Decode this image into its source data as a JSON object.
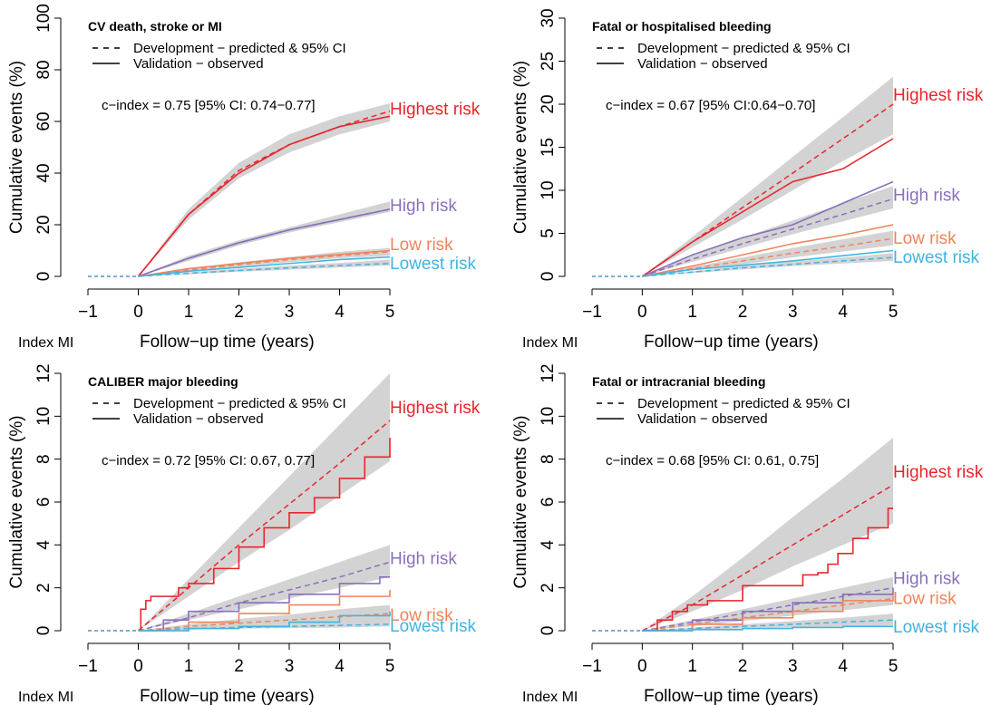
{
  "colors": {
    "highest": "#e8262c",
    "high": "#8a6fbd",
    "low": "#f0845c",
    "lowest": "#42b4e0",
    "ci_band": "#d3d3d3",
    "axis": "#000000"
  },
  "shared": {
    "ylabel": "Cumulative events (%)",
    "xlabel": "Follow−up time (years)",
    "index_label": "Index MI",
    "legend": {
      "dashed": "Development − predicted & 95% CI",
      "solid": "Validation − observed"
    },
    "xticks": [
      "−1",
      "0",
      "1",
      "2",
      "3",
      "4",
      "5"
    ]
  },
  "chart_data": [
    {
      "type": "line",
      "title": "CV death, stroke or MI",
      "annotation": "c−index = 0.75 [95% CI: 0.74−0.77]",
      "xlim": [
        -1,
        5
      ],
      "ylim": [
        0,
        100
      ],
      "yticks": [
        "0",
        "20",
        "40",
        "60",
        "80",
        "100"
      ],
      "series": [
        {
          "name": "Highest risk",
          "predicted": [
            0,
            24,
            41,
            51,
            58,
            64
          ],
          "ci_low": [
            0,
            22,
            38,
            48,
            55,
            60
          ],
          "ci_high": [
            0,
            26,
            44,
            55,
            62,
            67
          ],
          "observed": [
            0,
            24,
            40,
            51,
            58,
            62
          ]
        },
        {
          "name": "High risk",
          "predicted": [
            0,
            7,
            13,
            18,
            22,
            26
          ],
          "ci_low": [
            0,
            6,
            12,
            17,
            21,
            25
          ],
          "ci_high": [
            0,
            8,
            14,
            19,
            24,
            29
          ],
          "observed": [
            0,
            7,
            13,
            18,
            22,
            26
          ]
        },
        {
          "name": "Low risk",
          "predicted": [
            0,
            2.5,
            4.5,
            6.5,
            8,
            9.5
          ],
          "ci_low": [
            0,
            2,
            3.8,
            5.5,
            7,
            8
          ],
          "ci_high": [
            0,
            3,
            5.5,
            7.5,
            9.5,
            11
          ],
          "observed": [
            0,
            3,
            5,
            7,
            8.5,
            10
          ]
        },
        {
          "name": "Lowest risk",
          "predicted": [
            0,
            1.2,
            2.3,
            3.3,
            4.2,
            5
          ],
          "ci_low": [
            0,
            0.8,
            1.8,
            2.6,
            3.4,
            4.2
          ],
          "ci_high": [
            0,
            1.6,
            3,
            4.2,
            5.2,
            6.5
          ],
          "observed": [
            0,
            2,
            3.5,
            5,
            6.5,
            7.5
          ]
        }
      ]
    },
    {
      "type": "line",
      "title": "Fatal or hospitalised bleeding",
      "annotation": "c−index = 0.67 [95% CI:0.64−0.70]",
      "xlim": [
        -1,
        5
      ],
      "ylim": [
        0,
        30
      ],
      "yticks": [
        "0",
        "5",
        "10",
        "15",
        "20",
        "25",
        "30"
      ],
      "series": [
        {
          "name": "Highest risk",
          "predicted": [
            0,
            4,
            8,
            12,
            16,
            20
          ],
          "ci_low": [
            0,
            3.4,
            6.6,
            10,
            13.4,
            16.5
          ],
          "ci_high": [
            0,
            4.6,
            9.2,
            13.9,
            18.5,
            23.2
          ],
          "observed": [
            0,
            4,
            7.5,
            11,
            12.5,
            16
          ]
        },
        {
          "name": "High risk",
          "predicted": [
            0,
            2,
            3.8,
            5.5,
            7.2,
            9
          ],
          "ci_low": [
            0,
            1.7,
            3.3,
            4.9,
            6.4,
            7.9
          ],
          "ci_high": [
            0,
            2.4,
            4.5,
            6.5,
            8.5,
            10.5
          ],
          "observed": [
            0,
            2.5,
            4.5,
            6,
            8.5,
            11
          ]
        },
        {
          "name": "Low risk",
          "predicted": [
            0,
            0.9,
            1.8,
            2.7,
            3.5,
            4.4
          ],
          "ci_low": [
            0,
            0.7,
            1.4,
            2.2,
            2.9,
            3.6
          ],
          "ci_high": [
            0,
            1.1,
            2.2,
            3.3,
            4.3,
            5.3
          ],
          "observed": [
            0,
            1.2,
            2.5,
            3.8,
            4.8,
            6
          ]
        },
        {
          "name": "Lowest risk",
          "predicted": [
            0,
            0.5,
            1,
            1.4,
            1.8,
            2.2
          ],
          "ci_low": [
            0,
            0.4,
            0.8,
            1.2,
            1.5,
            1.8
          ],
          "ci_high": [
            0,
            0.6,
            1.2,
            1.7,
            2.2,
            2.7
          ],
          "observed": [
            0,
            0.8,
            1.3,
            1.8,
            2.4,
            3
          ]
        }
      ]
    },
    {
      "type": "line",
      "title": "CALIBER major bleeding",
      "annotation": "c−index = 0.72 [95% CI: 0.67, 0.77]",
      "xlim": [
        -1,
        5
      ],
      "ylim": [
        0,
        12
      ],
      "yticks": [
        "0",
        "2",
        "4",
        "6",
        "8",
        "10",
        "12"
      ],
      "series": [
        {
          "name": "Highest risk",
          "predicted": [
            0,
            2,
            4,
            5.9,
            7.8,
            9.8
          ],
          "ci_low": [
            0,
            1.6,
            3.2,
            4.7,
            6.3,
            7.9
          ],
          "ci_high": [
            0,
            2.4,
            4.8,
            7.2,
            9.6,
            12
          ]
        },
        {
          "name": "High risk",
          "predicted": [
            0,
            0.6,
            1.3,
            1.9,
            2.5,
            3.2
          ],
          "ci_low": [
            0,
            0.5,
            1,
            1.5,
            2,
            2.5
          ],
          "ci_high": [
            0,
            0.8,
            1.6,
            2.4,
            3.2,
            4
          ]
        },
        {
          "name": "Low risk",
          "predicted": [
            0,
            0.2,
            0.35,
            0.5,
            0.65,
            0.8
          ],
          "ci_low": [
            0,
            0.1,
            0.2,
            0.3,
            0.4,
            0.5
          ],
          "ci_high": [
            0,
            0.3,
            0.55,
            0.75,
            1,
            1.2
          ]
        },
        {
          "name": "Lowest risk",
          "predicted": [
            0,
            0.1,
            0.15,
            0.2,
            0.25,
            0.3
          ],
          "ci_low": [
            0,
            0.05,
            0.1,
            0.12,
            0.15,
            0.2
          ],
          "ci_high": [
            0,
            0.15,
            0.25,
            0.35,
            0.45,
            0.5
          ]
        }
      ],
      "observed_steps": [
        {
          "name": "Highest risk",
          "x": [
            0,
            0.05,
            0.15,
            0.25,
            0.5,
            0.8,
            1.0,
            1.5,
            2.0,
            2.5,
            3.0,
            3.5,
            4.0,
            4.5,
            5.0
          ],
          "y": [
            0,
            1,
            1.4,
            1.6,
            1.6,
            2,
            2.2,
            2.9,
            3.9,
            4.8,
            5.5,
            6.2,
            7.1,
            8.1,
            9
          ]
        },
        {
          "name": "High risk",
          "x": [
            0,
            0.5,
            1.0,
            2.0,
            3.0,
            4.0,
            4.8,
            5.0
          ],
          "y": [
            0,
            0.5,
            0.9,
            1.3,
            1.7,
            2.2,
            2.5,
            2.5
          ]
        },
        {
          "name": "Low risk",
          "x": [
            0,
            1.0,
            2.0,
            3.0,
            4.0,
            5.0
          ],
          "y": [
            0,
            0.4,
            0.8,
            1.2,
            1.6,
            1.9
          ]
        },
        {
          "name": "Lowest risk",
          "x": [
            0,
            1.0,
            2.0,
            3.0,
            4.0,
            5.0
          ],
          "y": [
            0,
            0.1,
            0.2,
            0.4,
            0.7,
            0.9
          ]
        }
      ]
    },
    {
      "type": "line",
      "title": "Fatal or intracranial bleeding",
      "annotation": "c−index = 0.68 [95% CI: 0.61, 0.75]",
      "xlim": [
        -1,
        5
      ],
      "ylim": [
        0,
        12
      ],
      "yticks": [
        "0",
        "2",
        "4",
        "6",
        "8",
        "10",
        "12"
      ],
      "series": [
        {
          "name": "Highest risk",
          "predicted": [
            0,
            1.2,
            2.6,
            4,
            5.4,
            6.8
          ],
          "ci_low": [
            0,
            0.9,
            1.9,
            3,
            4,
            5
          ],
          "ci_high": [
            0,
            1.6,
            3.4,
            5.3,
            7.1,
            9
          ]
        },
        {
          "name": "High risk",
          "predicted": [
            0,
            0.4,
            0.8,
            1.2,
            1.6,
            2
          ],
          "ci_low": [
            0,
            0.3,
            0.6,
            0.9,
            1.2,
            1.5
          ],
          "ci_high": [
            0,
            0.5,
            1,
            1.5,
            2,
            2.5
          ]
        },
        {
          "name": "Low risk",
          "predicted": [
            0,
            0.3,
            0.6,
            0.9,
            1.2,
            1.5
          ],
          "ci_low": [
            0,
            0.2,
            0.45,
            0.7,
            0.95,
            1.2
          ],
          "ci_high": [
            0,
            0.4,
            0.75,
            1.1,
            1.45,
            1.8
          ]
        },
        {
          "name": "Lowest risk",
          "predicted": [
            0,
            0.1,
            0.2,
            0.3,
            0.4,
            0.5
          ],
          "ci_low": [
            0,
            0.05,
            0.1,
            0.15,
            0.2,
            0.25
          ],
          "ci_high": [
            0,
            0.15,
            0.3,
            0.45,
            0.6,
            0.8
          ]
        }
      ],
      "observed_steps": [
        {
          "name": "Highest risk",
          "x": [
            0,
            0.3,
            0.6,
            0.9,
            1.3,
            2.0,
            2.9,
            3.2,
            3.5,
            3.7,
            3.9,
            4.2,
            4.5,
            4.9,
            5.0
          ],
          "y": [
            0,
            0.5,
            0.9,
            1.2,
            1.4,
            2.1,
            2.1,
            2.6,
            2.7,
            3.1,
            3.6,
            4.3,
            4.8,
            5.7,
            5.7
          ]
        },
        {
          "name": "High risk",
          "x": [
            0,
            1.0,
            2.0,
            3.0,
            4.0,
            5.0
          ],
          "y": [
            0,
            0.5,
            0.9,
            1.3,
            1.7,
            2
          ]
        },
        {
          "name": "Low risk",
          "x": [
            0,
            1.0,
            2.0,
            3.0,
            4.0,
            5.0
          ],
          "y": [
            0,
            0.3,
            0.6,
            0.9,
            1.4,
            1.7
          ]
        },
        {
          "name": "Lowest risk",
          "x": [
            0,
            1.0,
            2.0,
            3.0,
            4.0,
            5.0
          ],
          "y": [
            0,
            0.05,
            0.1,
            0.15,
            0.2,
            0.2
          ]
        }
      ]
    }
  ]
}
